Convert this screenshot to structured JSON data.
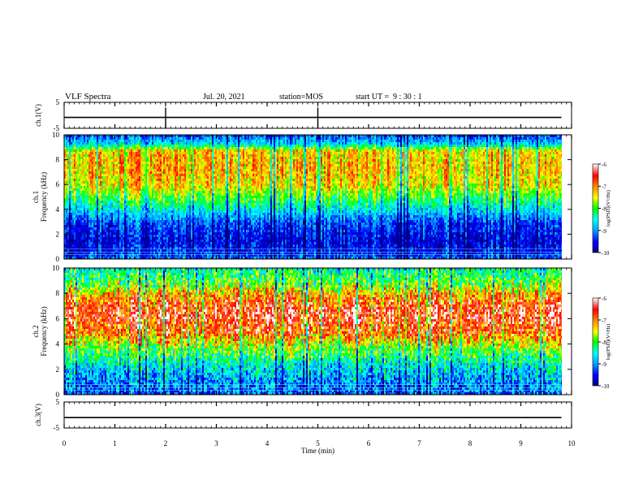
{
  "header": {
    "title": "VLF Spectra",
    "date": "Jul. 20, 2021",
    "station": "station=MOS",
    "start_ut": "start UT =  9 : 30 : 1"
  },
  "chart_data": [
    {
      "type": "line",
      "ylabel": "ch.1(V)",
      "ylim": [
        -5,
        5
      ],
      "yticks": [
        5,
        -5
      ],
      "x": [
        0,
        9.8
      ],
      "values": [
        -0.8,
        -0.8
      ],
      "spikes": [
        2.0,
        5.0
      ],
      "colors": {
        "line": "#000000"
      }
    },
    {
      "type": "heatmap",
      "ylabel": "Frequency (kHz)",
      "channel": "ch.1",
      "ylim": [
        0,
        10
      ],
      "yticks": [
        "0",
        "2",
        "4",
        "6",
        "8",
        "10"
      ],
      "xlim": [
        0,
        10
      ],
      "data_extent_min": 9.8,
      "intensity_profile": [
        {
          "freq": 0.0,
          "log_psd": -9.0
        },
        {
          "freq": 0.5,
          "log_psd": -9.4
        },
        {
          "freq": 1.5,
          "log_psd": -9.6
        },
        {
          "freq": 3.0,
          "log_psd": -9.3
        },
        {
          "freq": 4.5,
          "log_psd": -8.3
        },
        {
          "freq": 6.0,
          "log_psd": -7.4
        },
        {
          "freq": 7.5,
          "log_psd": -7.2
        },
        {
          "freq": 8.8,
          "log_psd": -7.3
        },
        {
          "freq": 9.3,
          "log_psd": -8.6
        },
        {
          "freq": 10.0,
          "log_psd": -9.2
        }
      ],
      "colorbar": {
        "label": "log(PSD)(V²/Hz)",
        "ticks": [
          "-6",
          "-7",
          "-8",
          "-9",
          "-10"
        ],
        "range": [
          -10,
          -6
        ]
      }
    },
    {
      "type": "heatmap",
      "ylabel": "Frequency (kHz)",
      "channel": "ch.2",
      "ylim": [
        0,
        10
      ],
      "yticks": [
        "0",
        "2",
        "4",
        "6",
        "8",
        "10"
      ],
      "xlim": [
        0,
        10
      ],
      "data_extent_min": 9.8,
      "intensity_profile": [
        {
          "freq": 0.0,
          "log_psd": -9.2
        },
        {
          "freq": 1.0,
          "log_psd": -9.0
        },
        {
          "freq": 2.5,
          "log_psd": -8.5
        },
        {
          "freq": 4.0,
          "log_psd": -7.6
        },
        {
          "freq": 5.0,
          "log_psd": -6.8
        },
        {
          "freq": 6.5,
          "log_psd": -6.4
        },
        {
          "freq": 7.8,
          "log_psd": -6.9
        },
        {
          "freq": 8.8,
          "log_psd": -7.8
        },
        {
          "freq": 10.0,
          "log_psd": -8.3
        }
      ],
      "colorbar": {
        "label": "log(PSD)(V²/Hz)",
        "ticks": [
          "-6",
          "-7",
          "-8",
          "-9",
          "-10"
        ],
        "range": [
          -10,
          -6
        ]
      }
    },
    {
      "type": "line",
      "ylabel": "ch.3(V)",
      "ylim": [
        -5,
        5
      ],
      "yticks": [
        5,
        -5
      ],
      "x": [
        0,
        9.8
      ],
      "values": [
        -1.0,
        -1.0
      ],
      "xlabel": "Time (min)",
      "xticks": [
        "0",
        "1",
        "2",
        "3",
        "4",
        "5",
        "6",
        "7",
        "8",
        "9",
        "10"
      ],
      "xlim": [
        0,
        10
      ],
      "colors": {
        "line": "#000000"
      }
    }
  ],
  "colormap": [
    "#000080",
    "#0000ff",
    "#00a0ff",
    "#00ffff",
    "#00ff00",
    "#ffff00",
    "#ff8000",
    "#ff0000",
    "#ffffff"
  ]
}
